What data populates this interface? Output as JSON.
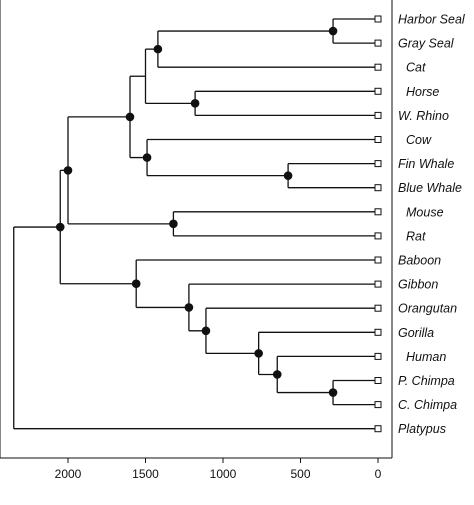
{
  "chart_data": {
    "type": "dendrogram",
    "x_axis": {
      "direction": "reversed",
      "ticks": [
        2000,
        1500,
        1000,
        500,
        0
      ]
    },
    "taxa": [
      {
        "label": "Harbor Seal"
      },
      {
        "label": "Gray Seal"
      },
      {
        "label": "Cat"
      },
      {
        "label": "Horse"
      },
      {
        "label": "W. Rhino"
      },
      {
        "label": "Cow"
      },
      {
        "label": "Fin Whale"
      },
      {
        "label": "Blue Whale"
      },
      {
        "label": "Mouse"
      },
      {
        "label": "Rat"
      },
      {
        "label": "Baboon"
      },
      {
        "label": "Gibbon"
      },
      {
        "label": "Orangutan"
      },
      {
        "label": "Gorilla"
      },
      {
        "label": "Human"
      },
      {
        "label": "P. Chimpa"
      },
      {
        "label": "C. Chimpa"
      },
      {
        "label": "Platypus"
      }
    ],
    "tree": {
      "height": 2350,
      "marker": false,
      "children": [
        {
          "height": 2050,
          "marker": true,
          "children": [
            {
              "height": 2000,
              "marker": true,
              "children": [
                {
                  "height": 1600,
                  "marker": true,
                  "children": [
                    {
                      "height": 1500,
                      "marker": false,
                      "children": [
                        {
                          "height": 1420,
                          "marker": true,
                          "children": [
                            {
                              "height": 290,
                              "marker": true,
                              "children": [
                                {
                                  "tip": 0
                                },
                                {
                                  "tip": 1
                                }
                              ]
                            },
                            {
                              "tip": 2
                            }
                          ]
                        },
                        {
                          "height": 1180,
                          "marker": true,
                          "children": [
                            {
                              "tip": 3
                            },
                            {
                              "tip": 4
                            }
                          ]
                        }
                      ]
                    },
                    {
                      "height": 1490,
                      "marker": true,
                      "children": [
                        {
                          "tip": 5
                        },
                        {
                          "height": 580,
                          "marker": true,
                          "children": [
                            {
                              "tip": 6
                            },
                            {
                              "tip": 7
                            }
                          ]
                        }
                      ]
                    }
                  ]
                },
                {
                  "height": 1320,
                  "marker": true,
                  "children": [
                    {
                      "tip": 8
                    },
                    {
                      "tip": 9
                    }
                  ]
                }
              ]
            },
            {
              "height": 1560,
              "marker": true,
              "children": [
                {
                  "tip": 10
                },
                {
                  "height": 1220,
                  "marker": true,
                  "children": [
                    {
                      "tip": 11
                    },
                    {
                      "height": 1110,
                      "marker": true,
                      "children": [
                        {
                          "tip": 12
                        },
                        {
                          "height": 770,
                          "marker": true,
                          "children": [
                            {
                              "tip": 13
                            },
                            {
                              "height": 650,
                              "marker": true,
                              "children": [
                                {
                                  "tip": 14
                                },
                                {
                                  "height": 290,
                                  "marker": true,
                                  "children": [
                                    {
                                      "tip": 15
                                    },
                                    {
                                      "tip": 16
                                    }
                                  ]
                                }
                              ]
                            }
                          ]
                        }
                      ]
                    }
                  ]
                }
              ]
            }
          ]
        },
        {
          "tip": 17
        }
      ]
    }
  }
}
